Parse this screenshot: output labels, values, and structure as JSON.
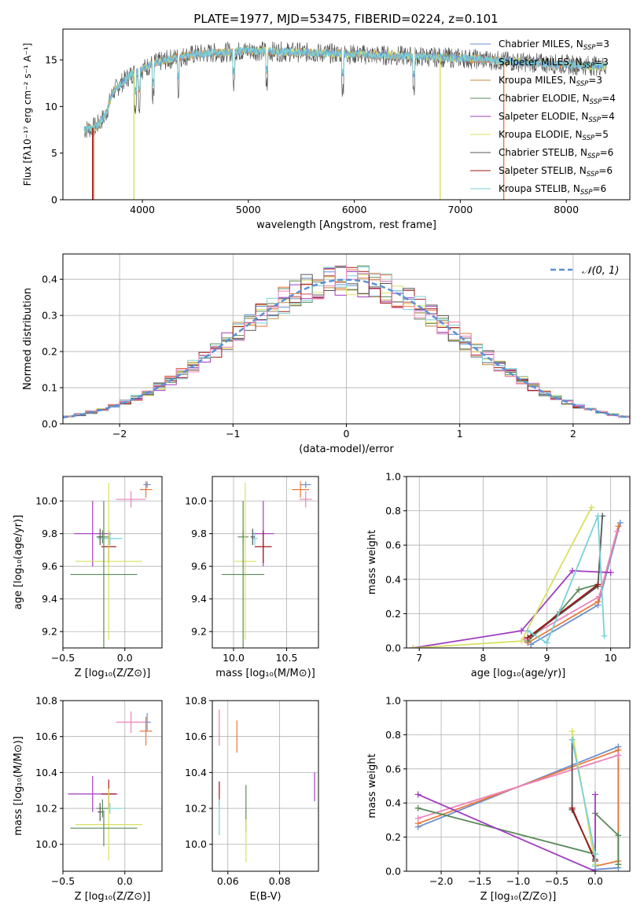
{
  "figure": {
    "title": "PLATE=1977, MJD=53475, FIBERID=0224, z=0.101"
  },
  "colors": {
    "Chabrier MILES": "#6a8fd1",
    "Salpeter MILES": "#e87a3a",
    "Kroupa MILES": "#c08a3a",
    "Chabrier ELODIE": "#5a8a5a",
    "Salpeter ELODIE": "#a03cc0",
    "Kroupa ELODIE": "#d8e060",
    "Chabrier STELIB": "#555555",
    "Salpeter STELIB": "#a01818",
    "Kroupa STELIB": "#7ad0d8",
    "pink": "#ee82b8",
    "normal": "#5b8fd6"
  },
  "chart_data": [
    {
      "id": "spectrum",
      "type": "line",
      "xlabel": "wavelength [Angstrom, rest frame]",
      "ylabel": "Flux [fλ10⁻¹⁷ erg cm⁻² s⁻¹ A⁻¹]",
      "xlim": [
        3250,
        8600
      ],
      "ylim": [
        0,
        18.3
      ],
      "xticks": [
        4000,
        5000,
        6000,
        7000,
        8000
      ],
      "yticks": [
        0,
        5,
        10,
        15
      ],
      "legend_position": "top-right",
      "legend": [
        {
          "label": "Chabrier MILES, N",
          "sub": "SSP",
          "suffix": "=3",
          "series": "Chabrier MILES"
        },
        {
          "label": "Salpeter MILES, N",
          "sub": "SSP",
          "suffix": "=3",
          "series": "Salpeter MILES"
        },
        {
          "label": "Kroupa MILES, N",
          "sub": "SSP",
          "suffix": "=3",
          "series": "Kroupa MILES"
        },
        {
          "label": "Chabrier ELODIE, N",
          "sub": "SSP",
          "suffix": "=4",
          "series": "Chabrier ELODIE"
        },
        {
          "label": "Salpeter ELODIE, N",
          "sub": "SSP",
          "suffix": "=4",
          "series": "Salpeter ELODIE"
        },
        {
          "label": "Kroupa ELODIE, N",
          "sub": "SSP",
          "suffix": "=5",
          "series": "Kroupa ELODIE"
        },
        {
          "label": "Chabrier STELIB, N",
          "sub": "SSP",
          "suffix": "=6",
          "series": "Chabrier STELIB"
        },
        {
          "label": "Salpeter STELIB, N",
          "sub": "SSP",
          "suffix": "=6",
          "series": "Salpeter STELIB"
        },
        {
          "label": "Kroupa STELIB, N",
          "sub": "SSP",
          "suffix": "=6",
          "series": "Kroupa STELIB"
        }
      ],
      "continuum": [
        [
          3450,
          7.5
        ],
        [
          3560,
          7.8
        ],
        [
          3650,
          9.0
        ],
        [
          3720,
          11.5
        ],
        [
          3800,
          12.5
        ],
        [
          3900,
          13.5
        ],
        [
          4000,
          14.0
        ],
        [
          4100,
          14.6
        ],
        [
          4300,
          15.2
        ],
        [
          4500,
          15.6
        ],
        [
          5000,
          16.0
        ],
        [
          5500,
          15.8
        ],
        [
          6000,
          15.6
        ],
        [
          6500,
          15.4
        ],
        [
          7000,
          15.2
        ],
        [
          7500,
          14.8
        ],
        [
          8000,
          14.5
        ],
        [
          8400,
          14.3
        ]
      ],
      "edges": [
        {
          "series": "Salpeter MILES",
          "x": 3540
        },
        {
          "series": "Kroupa ELODIE",
          "x": 3920
        },
        {
          "series": "Kroupa ELODIE",
          "x": 6810
        },
        {
          "series": "Salpeter MILES",
          "x": 7410
        },
        {
          "series": "Salpeter STELIB",
          "x": 3530
        }
      ]
    },
    {
      "id": "residuals",
      "type": "step",
      "xlabel": "(data-model)/error",
      "ylabel": "Normed distribution",
      "xlim": [
        -2.5,
        2.5
      ],
      "ylim": [
        0,
        0.47
      ],
      "xticks": [
        -2,
        -1,
        0,
        1,
        2
      ],
      "yticks": [
        0.0,
        0.1,
        0.2,
        0.3,
        0.4
      ],
      "grid": true,
      "legend_position": "top-right",
      "legend": [
        {
          "label": "𝒩(0, 1)",
          "series": "normal"
        }
      ],
      "bin_width": 0.1
    },
    {
      "id": "age-vs-Z",
      "type": "errorbar",
      "xlabel": "Z [log₁₀(Z/Z⊙)]",
      "ylabel": "age  [log₁₀(age/yr)]",
      "xlim": [
        -0.5,
        0.3
      ],
      "ylim": [
        9.1,
        10.15
      ],
      "xticks": [
        -0.5,
        0.0
      ],
      "yticks": [
        9.2,
        9.4,
        9.6,
        9.8,
        10.0
      ],
      "grid": true,
      "points": [
        {
          "series": "Chabrier MILES",
          "x": 0.18,
          "y": 10.1,
          "xerr": 0.03,
          "yerr": 0.02
        },
        {
          "series": "Salpeter MILES",
          "x": 0.17,
          "y": 10.07,
          "xerr": 0.05,
          "yerr": 0.05
        },
        {
          "series": "pink",
          "x": 0.05,
          "y": 10.01,
          "xerr": 0.12,
          "yerr": 0.05
        },
        {
          "series": "Salpeter ELODIE",
          "x": -0.26,
          "y": 9.8,
          "xerr": 0.15,
          "yerr": 0.2
        },
        {
          "series": "Chabrier ELODIE",
          "x": -0.18,
          "y": 9.78,
          "xerr": 0.05,
          "yerr": 0.04
        },
        {
          "series": "Kroupa STELIB",
          "x": -0.12,
          "y": 9.77,
          "xerr": 0.1,
          "yerr": 0.04
        },
        {
          "series": "Salpeter STELIB",
          "x": -0.13,
          "y": 9.72,
          "xerr": 0.06,
          "yerr": 0.1
        },
        {
          "series": "Kroupa ELODIE",
          "x": -0.13,
          "y": 9.63,
          "xerr": 0.27,
          "yerr": 0.48
        },
        {
          "series": "Chabrier ELODIE",
          "x": -0.17,
          "y": 9.55,
          "xerr": 0.27,
          "yerr": 0.45
        },
        {
          "series": "Chabrier STELIB",
          "x": -0.2,
          "y": 9.78,
          "xerr": 0.02,
          "yerr": 0.05
        }
      ]
    },
    {
      "id": "age-vs-mass",
      "type": "errorbar",
      "xlabel": "mass [log₁₀(M/M⊙)]",
      "ylabel": "",
      "xlim": [
        9.8,
        10.8
      ],
      "ylim": [
        9.1,
        10.15
      ],
      "xticks": [
        10.0,
        10.5
      ],
      "yticks": [
        9.2,
        9.4,
        9.6,
        9.8,
        10.0
      ],
      "grid": true,
      "points": [
        {
          "series": "Chabrier MILES",
          "x": 10.68,
          "y": 10.1,
          "xerr": 0.05,
          "yerr": 0.02
        },
        {
          "series": "Salpeter MILES",
          "x": 10.63,
          "y": 10.07,
          "xerr": 0.08,
          "yerr": 0.05
        },
        {
          "series": "pink",
          "x": 10.68,
          "y": 10.01,
          "xerr": 0.06,
          "yerr": 0.05
        },
        {
          "series": "Salpeter ELODIE",
          "x": 10.28,
          "y": 9.8,
          "xerr": 0.1,
          "yerr": 0.2
        },
        {
          "series": "Chabrier ELODIE",
          "x": 10.09,
          "y": 9.78,
          "xerr": 0.05,
          "yerr": 0.04
        },
        {
          "series": "Kroupa STELIB",
          "x": 10.2,
          "y": 9.77,
          "xerr": 0.03,
          "yerr": 0.04
        },
        {
          "series": "Salpeter STELIB",
          "x": 10.28,
          "y": 9.72,
          "xerr": 0.08,
          "yerr": 0.1
        },
        {
          "series": "Kroupa ELODIE",
          "x": 10.11,
          "y": 9.63,
          "xerr": 0.1,
          "yerr": 0.48
        },
        {
          "series": "Chabrier ELODIE",
          "x": 10.09,
          "y": 9.55,
          "xerr": 0.2,
          "yerr": 0.45
        },
        {
          "series": "Chabrier STELIB",
          "x": 10.18,
          "y": 9.78,
          "xerr": 0.02,
          "yerr": 0.05
        }
      ]
    },
    {
      "id": "weight-vs-age",
      "type": "line",
      "xlabel": "age  [log₁₀(age/yr)]",
      "ylabel": "mass weight",
      "xlim": [
        6.8,
        10.3
      ],
      "ylim": [
        0,
        1.0
      ],
      "xticks": [
        7,
        8,
        9,
        10
      ],
      "yticks": [
        0.0,
        0.2,
        0.4,
        0.6,
        0.8,
        1.0
      ],
      "grid": true,
      "series": [
        {
          "name": "Chabrier MILES",
          "x": [
            8.75,
            9.8,
            10.15
          ],
          "y": [
            0.02,
            0.25,
            0.73
          ]
        },
        {
          "name": "Salpeter MILES",
          "x": [
            8.7,
            9.8,
            10.12
          ],
          "y": [
            0.03,
            0.27,
            0.71
          ]
        },
        {
          "name": "pink",
          "x": [
            8.65,
            9.82,
            10.1
          ],
          "y": [
            0.05,
            0.3,
            0.68
          ]
        },
        {
          "name": "Chabrier ELODIE",
          "x": [
            8.7,
            9.2,
            9.5,
            9.8
          ],
          "y": [
            0.04,
            0.21,
            0.34,
            0.37
          ]
        },
        {
          "name": "Salpeter ELODIE",
          "x": [
            6.9,
            8.6,
            9.4,
            10.0
          ],
          "y": [
            0.0,
            0.1,
            0.45,
            0.44
          ]
        },
        {
          "name": "Kroupa ELODIE",
          "x": [
            6.9,
            8.6,
            9.7
          ],
          "y": [
            0.0,
            0.04,
            0.82
          ]
        },
        {
          "name": "Chabrier STELIB",
          "x": [
            8.75,
            9.8,
            9.87
          ],
          "y": [
            0.07,
            0.36,
            0.77
          ]
        },
        {
          "name": "Salpeter STELIB",
          "x": [
            8.7,
            9.8
          ],
          "y": [
            0.06,
            0.37
          ]
        },
        {
          "name": "Kroupa STELIB",
          "x": [
            8.7,
            9.0,
            9.8,
            9.9
          ],
          "y": [
            0.1,
            0.03,
            0.77,
            0.07
          ]
        }
      ]
    },
    {
      "id": "mass-vs-Z",
      "type": "errorbar",
      "xlabel": "Z [log₁₀(Z/Z⊙)]",
      "ylabel": "mass [log₁₀(M/M⊙)]",
      "xlim": [
        -0.5,
        0.3
      ],
      "ylim": [
        9.85,
        10.8
      ],
      "xticks": [
        -0.5,
        0.0
      ],
      "yticks": [
        10.0,
        10.2,
        10.4,
        10.6,
        10.8
      ],
      "grid": true,
      "points": [
        {
          "series": "Chabrier MILES",
          "x": 0.18,
          "y": 10.68,
          "xerr": 0.03,
          "yerr": 0.05
        },
        {
          "series": "Salpeter MILES",
          "x": 0.17,
          "y": 10.63,
          "xerr": 0.05,
          "yerr": 0.08
        },
        {
          "series": "pink",
          "x": 0.05,
          "y": 10.68,
          "xerr": 0.12,
          "yerr": 0.06
        },
        {
          "series": "Salpeter ELODIE",
          "x": -0.26,
          "y": 10.28,
          "xerr": 0.2,
          "yerr": 0.1
        },
        {
          "series": "Salpeter STELIB",
          "x": -0.13,
          "y": 10.28,
          "xerr": 0.06,
          "yerr": 0.08
        },
        {
          "series": "Kroupa STELIB",
          "x": -0.12,
          "y": 10.2,
          "xerr": 0.1,
          "yerr": 0.03
        },
        {
          "series": "Chabrier ELODIE",
          "x": -0.18,
          "y": 10.2,
          "xerr": 0.05,
          "yerr": 0.05
        },
        {
          "series": "Kroupa ELODIE",
          "x": -0.13,
          "y": 10.11,
          "xerr": 0.27,
          "yerr": 0.2
        },
        {
          "series": "Chabrier ELODIE",
          "x": -0.17,
          "y": 10.09,
          "xerr": 0.27,
          "yerr": 0.1
        },
        {
          "series": "Chabrier STELIB",
          "x": -0.2,
          "y": 10.18,
          "xerr": 0.02,
          "yerr": 0.05
        }
      ]
    },
    {
      "id": "mass-vs-ebv",
      "type": "errorbar",
      "xlabel": "E(B-V)",
      "ylabel": "",
      "xlim": [
        0.054,
        0.095
      ],
      "ylim": [
        9.85,
        10.8
      ],
      "xticks": [
        0.06,
        0.08
      ],
      "yticks": [
        10.0,
        10.2,
        10.4,
        10.6,
        10.8
      ],
      "grid": true,
      "points": [
        {
          "series": "pink",
          "x": 0.0567,
          "y": 10.65,
          "xerr": 0,
          "yerr": 0.1
        },
        {
          "series": "Salpeter MILES",
          "x": 0.0635,
          "y": 10.6,
          "xerr": 0,
          "yerr": 0.09
        },
        {
          "series": "Salpeter STELIB",
          "x": 0.0567,
          "y": 10.28,
          "xerr": 0,
          "yerr": 0.07
        },
        {
          "series": "Kroupa STELIB",
          "x": 0.0567,
          "y": 10.15,
          "xerr": 0,
          "yerr": 0.1
        },
        {
          "series": "Chabrier ELODIE",
          "x": 0.067,
          "y": 10.2,
          "xerr": 0,
          "yerr": 0.13
        },
        {
          "series": "Kroupa ELODIE",
          "x": 0.067,
          "y": 10.02,
          "xerr": 0,
          "yerr": 0.12
        },
        {
          "series": "Salpeter ELODIE",
          "x": 0.0935,
          "y": 10.32,
          "xerr": 0,
          "yerr": 0.08
        }
      ]
    },
    {
      "id": "weight-vs-Z",
      "type": "line",
      "xlabel": "Z [log₁₀(Z/Z⊙)]",
      "ylabel": "mass weight",
      "xlim": [
        -2.45,
        0.45
      ],
      "ylim": [
        0,
        1.0
      ],
      "xticks": [
        -2.0,
        -1.5,
        -1.0,
        -0.5,
        0.0
      ],
      "yticks": [
        0.0,
        0.2,
        0.4,
        0.6,
        0.8,
        1.0
      ],
      "grid": true,
      "series": [
        {
          "name": "Chabrier MILES",
          "x": [
            -2.3,
            0.3,
            0.3,
            0.0
          ],
          "y": [
            0.26,
            0.73,
            0.02,
            0.01
          ]
        },
        {
          "name": "Salpeter MILES",
          "x": [
            -2.3,
            0.3,
            0.3,
            0.0
          ],
          "y": [
            0.28,
            0.71,
            0.06,
            0.03
          ]
        },
        {
          "name": "pink",
          "x": [
            -2.3,
            0.3
          ],
          "y": [
            0.31,
            0.68
          ]
        },
        {
          "name": "Chabrier ELODIE",
          "x": [
            -2.3,
            0.0,
            0.0,
            0.3,
            0.3
          ],
          "y": [
            0.37,
            0.1,
            0.34,
            0.21,
            0.04
          ]
        },
        {
          "name": "Salpeter ELODIE",
          "x": [
            -2.3,
            0.0,
            0.0
          ],
          "y": [
            0.45,
            0.0,
            0.45
          ]
        },
        {
          "name": "Kroupa ELODIE",
          "x": [
            -0.3,
            0.0
          ],
          "y": [
            0.82,
            0.04
          ]
        },
        {
          "name": "Chabrier STELIB",
          "x": [
            -0.3,
            -0.3,
            0.0
          ],
          "y": [
            0.77,
            0.36,
            0.07
          ]
        },
        {
          "name": "Salpeter STELIB",
          "x": [
            -0.3,
            0.0
          ],
          "y": [
            0.37,
            0.06
          ]
        },
        {
          "name": "Kroupa STELIB",
          "x": [
            -0.3,
            0.0,
            0.0
          ],
          "y": [
            0.77,
            0.1,
            0.03
          ]
        }
      ]
    }
  ]
}
